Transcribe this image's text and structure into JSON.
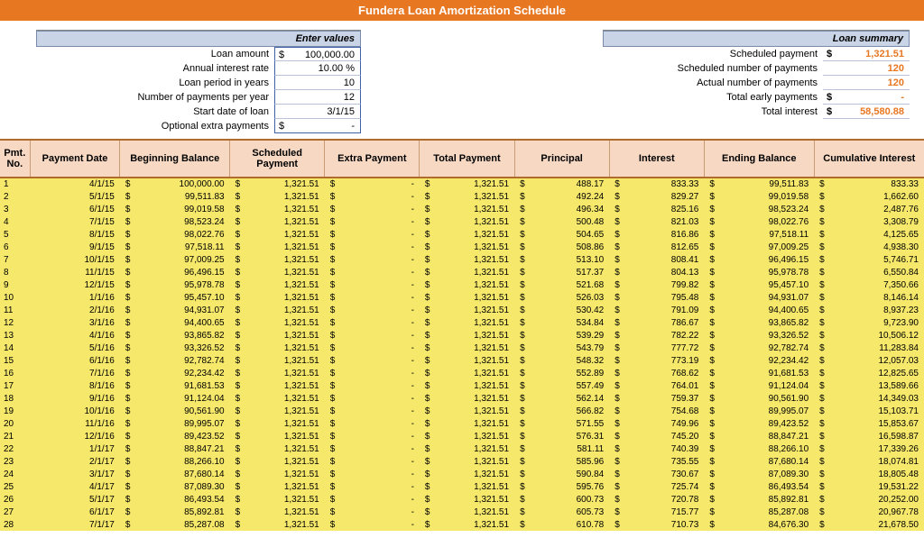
{
  "title": "Fundera Loan Amortization Schedule",
  "inputs": {
    "header": "Enter values",
    "rows": [
      {
        "label": "Loan amount",
        "value": "100,000.00",
        "dollar": true
      },
      {
        "label": "Annual interest rate",
        "value": "10.00  %",
        "dollar": false
      },
      {
        "label": "Loan period in years",
        "value": "10",
        "dollar": false
      },
      {
        "label": "Number of payments per year",
        "value": "12",
        "dollar": false
      },
      {
        "label": "Start date of loan",
        "value": "3/1/15",
        "dollar": false
      },
      {
        "label": "Optional extra payments",
        "value": "-",
        "dollar": true
      }
    ]
  },
  "summary": {
    "header": "Loan summary",
    "rows": [
      {
        "label": "Scheduled payment",
        "value": "1,321.51",
        "dollar": true,
        "orange": true
      },
      {
        "label": "Scheduled number of payments",
        "value": "120",
        "dollar": false,
        "orange": true
      },
      {
        "label": "Actual number of payments",
        "value": "120",
        "dollar": false,
        "orange": true
      },
      {
        "label": "Total early payments",
        "value": "-",
        "dollar": true,
        "orange": true
      },
      {
        "label": "Total interest",
        "value": "58,580.88",
        "dollar": true,
        "orange": true
      }
    ]
  },
  "columns": [
    "Pmt. No.",
    "Payment Date",
    "Beginning Balance",
    "Scheduled Payment",
    "Extra Payment",
    "Total Payment",
    "Principal",
    "Interest",
    "Ending Balance",
    "Cumulative Interest"
  ],
  "rows": [
    {
      "n": "1",
      "date": "4/1/15",
      "beg": "100,000.00",
      "sch": "1,321.51",
      "ext": "-",
      "tot": "1,321.51",
      "prin": "488.17",
      "int": "833.33",
      "end": "99,511.83",
      "cum": "833.33"
    },
    {
      "n": "2",
      "date": "5/1/15",
      "beg": "99,511.83",
      "sch": "1,321.51",
      "ext": "-",
      "tot": "1,321.51",
      "prin": "492.24",
      "int": "829.27",
      "end": "99,019.58",
      "cum": "1,662.60"
    },
    {
      "n": "3",
      "date": "6/1/15",
      "beg": "99,019.58",
      "sch": "1,321.51",
      "ext": "-",
      "tot": "1,321.51",
      "prin": "496.34",
      "int": "825.16",
      "end": "98,523.24",
      "cum": "2,487.76"
    },
    {
      "n": "4",
      "date": "7/1/15",
      "beg": "98,523.24",
      "sch": "1,321.51",
      "ext": "-",
      "tot": "1,321.51",
      "prin": "500.48",
      "int": "821.03",
      "end": "98,022.76",
      "cum": "3,308.79"
    },
    {
      "n": "5",
      "date": "8/1/15",
      "beg": "98,022.76",
      "sch": "1,321.51",
      "ext": "-",
      "tot": "1,321.51",
      "prin": "504.65",
      "int": "816.86",
      "end": "97,518.11",
      "cum": "4,125.65"
    },
    {
      "n": "6",
      "date": "9/1/15",
      "beg": "97,518.11",
      "sch": "1,321.51",
      "ext": "-",
      "tot": "1,321.51",
      "prin": "508.86",
      "int": "812.65",
      "end": "97,009.25",
      "cum": "4,938.30"
    },
    {
      "n": "7",
      "date": "10/1/15",
      "beg": "97,009.25",
      "sch": "1,321.51",
      "ext": "-",
      "tot": "1,321.51",
      "prin": "513.10",
      "int": "808.41",
      "end": "96,496.15",
      "cum": "5,746.71"
    },
    {
      "n": "8",
      "date": "11/1/15",
      "beg": "96,496.15",
      "sch": "1,321.51",
      "ext": "-",
      "tot": "1,321.51",
      "prin": "517.37",
      "int": "804.13",
      "end": "95,978.78",
      "cum": "6,550.84"
    },
    {
      "n": "9",
      "date": "12/1/15",
      "beg": "95,978.78",
      "sch": "1,321.51",
      "ext": "-",
      "tot": "1,321.51",
      "prin": "521.68",
      "int": "799.82",
      "end": "95,457.10",
      "cum": "7,350.66"
    },
    {
      "n": "10",
      "date": "1/1/16",
      "beg": "95,457.10",
      "sch": "1,321.51",
      "ext": "-",
      "tot": "1,321.51",
      "prin": "526.03",
      "int": "795.48",
      "end": "94,931.07",
      "cum": "8,146.14"
    },
    {
      "n": "11",
      "date": "2/1/16",
      "beg": "94,931.07",
      "sch": "1,321.51",
      "ext": "-",
      "tot": "1,321.51",
      "prin": "530.42",
      "int": "791.09",
      "end": "94,400.65",
      "cum": "8,937.23"
    },
    {
      "n": "12",
      "date": "3/1/16",
      "beg": "94,400.65",
      "sch": "1,321.51",
      "ext": "-",
      "tot": "1,321.51",
      "prin": "534.84",
      "int": "786.67",
      "end": "93,865.82",
      "cum": "9,723.90"
    },
    {
      "n": "13",
      "date": "4/1/16",
      "beg": "93,865.82",
      "sch": "1,321.51",
      "ext": "-",
      "tot": "1,321.51",
      "prin": "539.29",
      "int": "782.22",
      "end": "93,326.52",
      "cum": "10,506.12"
    },
    {
      "n": "14",
      "date": "5/1/16",
      "beg": "93,326.52",
      "sch": "1,321.51",
      "ext": "-",
      "tot": "1,321.51",
      "prin": "543.79",
      "int": "777.72",
      "end": "92,782.74",
      "cum": "11,283.84"
    },
    {
      "n": "15",
      "date": "6/1/16",
      "beg": "92,782.74",
      "sch": "1,321.51",
      "ext": "-",
      "tot": "1,321.51",
      "prin": "548.32",
      "int": "773.19",
      "end": "92,234.42",
      "cum": "12,057.03"
    },
    {
      "n": "16",
      "date": "7/1/16",
      "beg": "92,234.42",
      "sch": "1,321.51",
      "ext": "-",
      "tot": "1,321.51",
      "prin": "552.89",
      "int": "768.62",
      "end": "91,681.53",
      "cum": "12,825.65"
    },
    {
      "n": "17",
      "date": "8/1/16",
      "beg": "91,681.53",
      "sch": "1,321.51",
      "ext": "-",
      "tot": "1,321.51",
      "prin": "557.49",
      "int": "764.01",
      "end": "91,124.04",
      "cum": "13,589.66"
    },
    {
      "n": "18",
      "date": "9/1/16",
      "beg": "91,124.04",
      "sch": "1,321.51",
      "ext": "-",
      "tot": "1,321.51",
      "prin": "562.14",
      "int": "759.37",
      "end": "90,561.90",
      "cum": "14,349.03"
    },
    {
      "n": "19",
      "date": "10/1/16",
      "beg": "90,561.90",
      "sch": "1,321.51",
      "ext": "-",
      "tot": "1,321.51",
      "prin": "566.82",
      "int": "754.68",
      "end": "89,995.07",
      "cum": "15,103.71"
    },
    {
      "n": "20",
      "date": "11/1/16",
      "beg": "89,995.07",
      "sch": "1,321.51",
      "ext": "-",
      "tot": "1,321.51",
      "prin": "571.55",
      "int": "749.96",
      "end": "89,423.52",
      "cum": "15,853.67"
    },
    {
      "n": "21",
      "date": "12/1/16",
      "beg": "89,423.52",
      "sch": "1,321.51",
      "ext": "-",
      "tot": "1,321.51",
      "prin": "576.31",
      "int": "745.20",
      "end": "88,847.21",
      "cum": "16,598.87"
    },
    {
      "n": "22",
      "date": "1/1/17",
      "beg": "88,847.21",
      "sch": "1,321.51",
      "ext": "-",
      "tot": "1,321.51",
      "prin": "581.11",
      "int": "740.39",
      "end": "88,266.10",
      "cum": "17,339.26"
    },
    {
      "n": "23",
      "date": "2/1/17",
      "beg": "88,266.10",
      "sch": "1,321.51",
      "ext": "-",
      "tot": "1,321.51",
      "prin": "585.96",
      "int": "735.55",
      "end": "87,680.14",
      "cum": "18,074.81"
    },
    {
      "n": "24",
      "date": "3/1/17",
      "beg": "87,680.14",
      "sch": "1,321.51",
      "ext": "-",
      "tot": "1,321.51",
      "prin": "590.84",
      "int": "730.67",
      "end": "87,089.30",
      "cum": "18,805.48"
    },
    {
      "n": "25",
      "date": "4/1/17",
      "beg": "87,089.30",
      "sch": "1,321.51",
      "ext": "-",
      "tot": "1,321.51",
      "prin": "595.76",
      "int": "725.74",
      "end": "86,493.54",
      "cum": "19,531.22"
    },
    {
      "n": "26",
      "date": "5/1/17",
      "beg": "86,493.54",
      "sch": "1,321.51",
      "ext": "-",
      "tot": "1,321.51",
      "prin": "600.73",
      "int": "720.78",
      "end": "85,892.81",
      "cum": "20,252.00"
    },
    {
      "n": "27",
      "date": "6/1/17",
      "beg": "85,892.81",
      "sch": "1,321.51",
      "ext": "-",
      "tot": "1,321.51",
      "prin": "605.73",
      "int": "715.77",
      "end": "85,287.08",
      "cum": "20,967.78"
    },
    {
      "n": "28",
      "date": "7/1/17",
      "beg": "85,287.08",
      "sch": "1,321.51",
      "ext": "-",
      "tot": "1,321.51",
      "prin": "610.78",
      "int": "710.73",
      "end": "84,676.30",
      "cum": "21,678.50"
    }
  ],
  "colors": {
    "header_bg": "#e87722",
    "panel_bg": "#c9d4e6",
    "thead_bg": "#f7d9c3",
    "row_bg": "#f5e86b",
    "accent": "#e87722"
  }
}
